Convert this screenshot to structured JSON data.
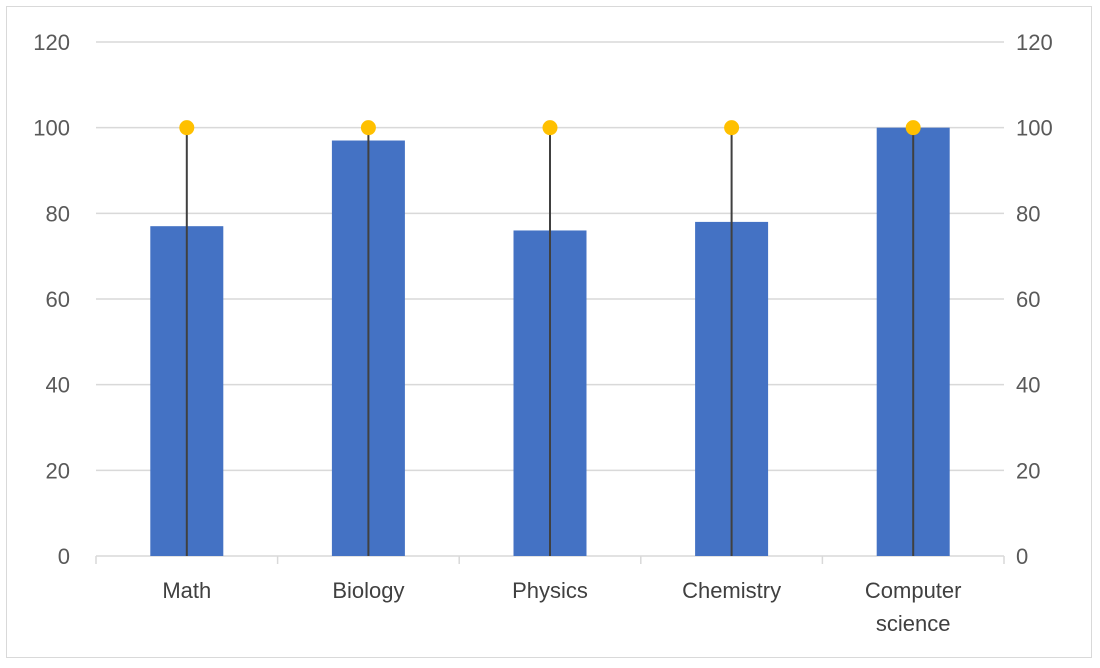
{
  "chart_data": {
    "type": "bar",
    "categories": [
      "Math",
      "Biology",
      "Physics",
      "Chemistry",
      "Computer science"
    ],
    "category_lines": [
      [
        "Math"
      ],
      [
        "Biology"
      ],
      [
        "Physics"
      ],
      [
        "Chemistry"
      ],
      [
        "Computer",
        "science"
      ]
    ],
    "series": [
      {
        "type": "bar",
        "values": [
          77,
          97,
          76,
          78,
          100
        ],
        "color": "#4472c4"
      },
      {
        "type": "drop-line-marker",
        "values": [
          100,
          100,
          100,
          100,
          100
        ],
        "marker_color": "#ffc000",
        "line_color": "#404040"
      }
    ],
    "ylim": [
      0,
      120
    ],
    "y_ticks": [
      0,
      20,
      40,
      60,
      80,
      100,
      120
    ],
    "secondary_ylim": [
      0,
      120
    ],
    "secondary_y_ticks": [
      0,
      20,
      40,
      60,
      80,
      100,
      120
    ],
    "title": "",
    "xlabel": "",
    "ylabel": "",
    "grid": true,
    "gridline_color": "#d9d9d9",
    "legend": "none"
  }
}
